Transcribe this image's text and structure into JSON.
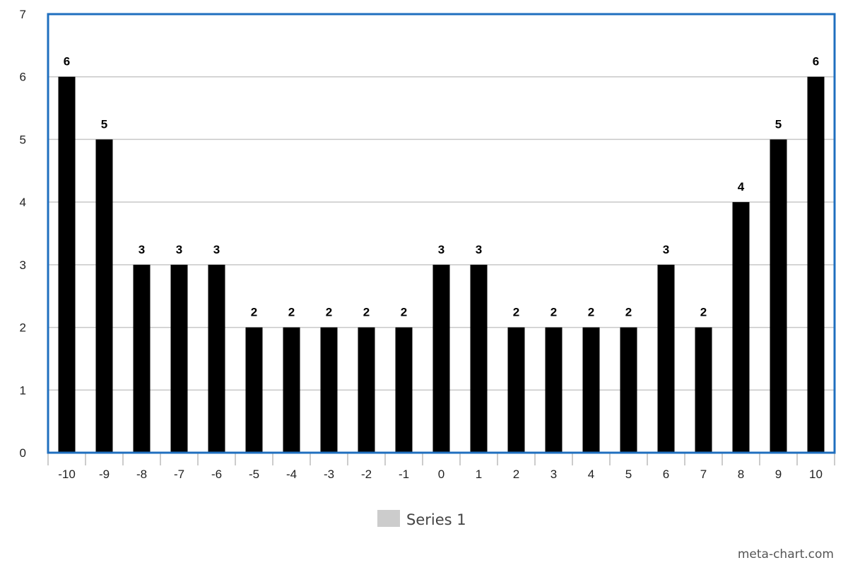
{
  "chart_data": {
    "type": "bar",
    "categories": [
      "-10",
      "-9",
      "-8",
      "-7",
      "-6",
      "-5",
      "-4",
      "-3",
      "-2",
      "-1",
      "0",
      "1",
      "2",
      "3",
      "4",
      "5",
      "6",
      "7",
      "8",
      "9",
      "10"
    ],
    "series": [
      {
        "name": "Series 1",
        "values": [
          6,
          5,
          3,
          3,
          3,
          2,
          2,
          2,
          2,
          2,
          3,
          3,
          2,
          2,
          2,
          2,
          3,
          2,
          4,
          5,
          6
        ]
      }
    ],
    "title": "",
    "xlabel": "",
    "ylabel": "",
    "ylim": [
      0,
      7
    ],
    "yticks": [
      "0",
      "1",
      "2",
      "3",
      "4",
      "5",
      "6",
      "7"
    ],
    "grid": true,
    "data_labels": true,
    "legend_position": "bottom-center"
  },
  "colors": {
    "bar": "#000000",
    "legend_swatch": "#cccccc",
    "plot_border": "#1f6fbf",
    "grid": "#c8c8c8",
    "axis_ticks": "#bbbbbb"
  },
  "legend": {
    "label": "Series 1"
  },
  "credit": "meta-chart.com"
}
